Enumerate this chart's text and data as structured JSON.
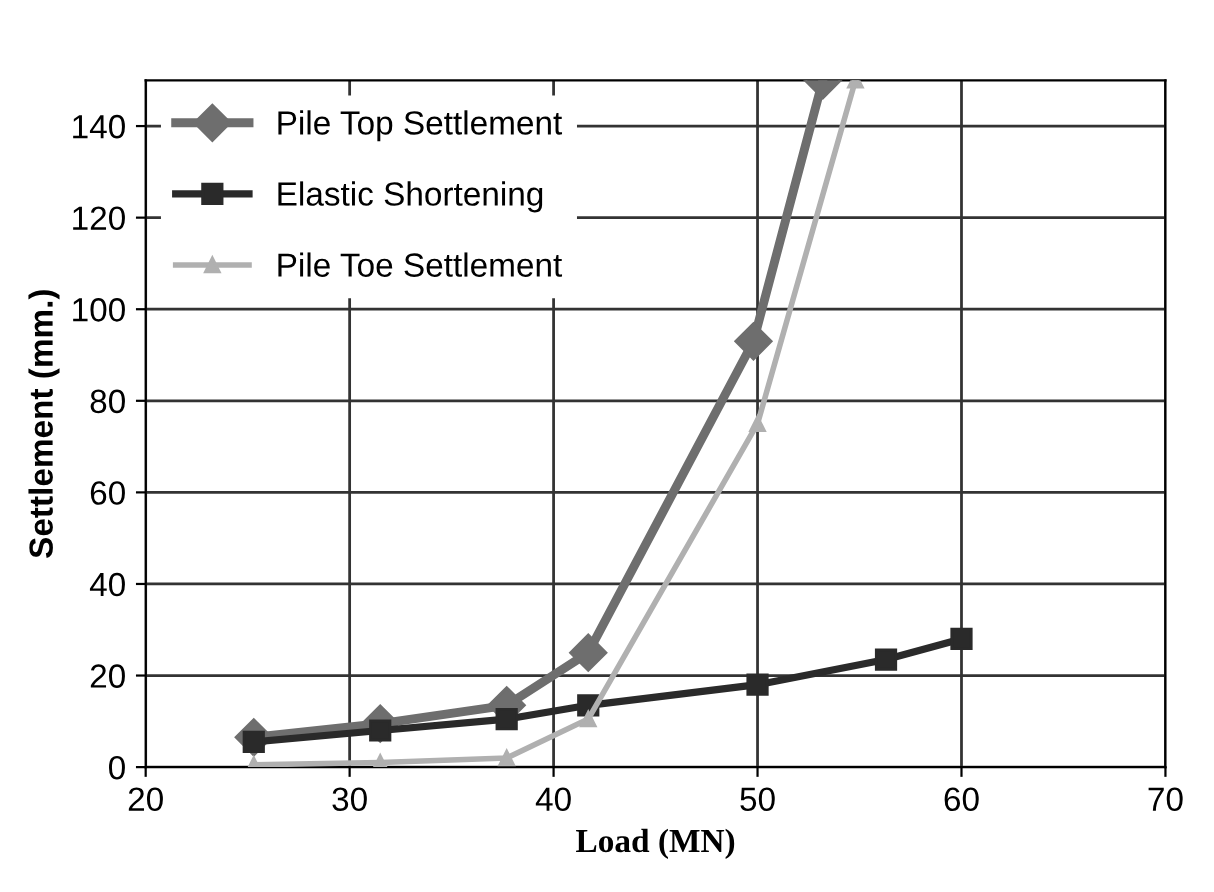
{
  "chart_data": {
    "type": "line",
    "xlabel": "Load (MN)",
    "ylabel": "Settlement (mm.)",
    "xlim": [
      20,
      70
    ],
    "xticks": [
      20,
      30,
      40,
      50,
      60,
      70
    ],
    "ylim": [
      0,
      150
    ],
    "yticks": [
      0,
      20,
      40,
      60,
      80,
      100,
      120,
      140
    ],
    "grid": true,
    "legend": "top left",
    "series": [
      {
        "name": "Pile Top Settlement",
        "color": "#6e6e6e",
        "marker": "diamond",
        "x": [
          25.3,
          31.5,
          37.7,
          41.7,
          49.8,
          53.2
        ],
        "values": [
          6.5,
          9.5,
          13.5,
          25,
          93,
          150
        ]
      },
      {
        "name": "Elastic Shortening",
        "color": "#2a2a2a",
        "marker": "square",
        "x": [
          25.3,
          31.5,
          37.7,
          41.7,
          50,
          56.3,
          60
        ],
        "values": [
          5.5,
          8,
          10.5,
          13.5,
          18,
          23.5,
          28
        ]
      },
      {
        "name": "Pile Toe Settlement",
        "color": "#b0b0b0",
        "marker": "triangle",
        "x": [
          25.3,
          31.5,
          37.7,
          41.7,
          50,
          54.8
        ],
        "values": [
          0.5,
          1,
          2,
          10.5,
          75,
          150
        ]
      }
    ]
  }
}
